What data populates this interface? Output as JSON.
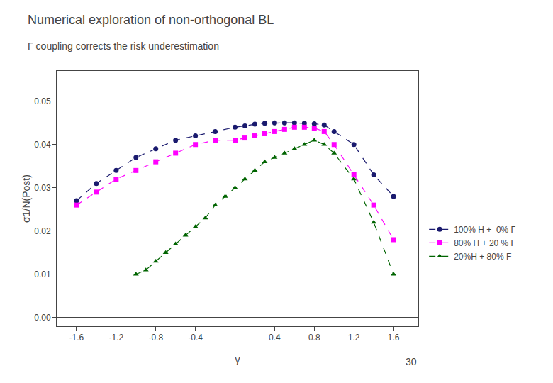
{
  "chart_data": {
    "type": "line",
    "title": "Numerical exploration of non-orthogonal BL",
    "subtitle": "Γ coupling corrects the risk underestimation",
    "xlabel": "γ",
    "ylabel": "σ1/N(Post)",
    "annotations": [
      "30"
    ],
    "xlim": [
      -1.8,
      1.85
    ],
    "ylim": [
      -0.002,
      0.057
    ],
    "xticks": [
      -1.6,
      -1.2,
      -0.8,
      -0.4,
      {
        "value": 0.0,
        "label": null
      },
      0.4,
      0.8,
      1.2,
      1.6
    ],
    "yticks": [
      {
        "value": 0.0,
        "label": "0.00"
      },
      0.01,
      0.02,
      0.03,
      0.04,
      0.05
    ],
    "grid": false,
    "legend": "right",
    "series": [
      {
        "name": "100% H +  0% Γ",
        "color": "#1a1a6e",
        "marker": "circle",
        "line_style": "dash",
        "x": [
          -1.6,
          -1.4,
          -1.2,
          -1.0,
          -0.8,
          -0.6,
          -0.4,
          -0.2,
          0.0,
          0.1,
          0.2,
          0.3,
          0.4,
          0.5,
          0.6,
          0.7,
          0.8,
          0.9,
          1.0,
          1.2,
          1.4,
          1.6
        ],
        "values": [
          0.027,
          0.031,
          0.034,
          0.037,
          0.039,
          0.041,
          0.042,
          0.043,
          0.044,
          0.0443,
          0.0447,
          0.0449,
          0.045,
          0.045,
          0.045,
          0.0449,
          0.0448,
          0.0445,
          0.043,
          0.04,
          0.033,
          0.028
        ]
      },
      {
        "name": "80% H + 20 % F",
        "color": "#ff00ff",
        "marker": "square",
        "line_style": "dash",
        "x": [
          -1.6,
          -1.4,
          -1.2,
          -1.0,
          -0.8,
          -0.6,
          -0.4,
          -0.2,
          0.0,
          0.1,
          0.2,
          0.3,
          0.4,
          0.5,
          0.6,
          0.7,
          0.8,
          0.9,
          1.0,
          1.2,
          1.4,
          1.6
        ],
        "values": [
          0.026,
          0.029,
          0.032,
          0.034,
          0.036,
          0.038,
          0.04,
          0.041,
          0.041,
          0.0415,
          0.042,
          0.0425,
          0.043,
          0.0435,
          0.044,
          0.044,
          0.0438,
          0.043,
          0.04,
          0.033,
          0.026,
          0.018
        ]
      },
      {
        "name": "20%H + 80% F",
        "color": "#006400",
        "marker": "triangle-up",
        "line_style": "dash",
        "x": [
          -1.0,
          -0.9,
          -0.8,
          -0.7,
          -0.6,
          -0.5,
          -0.4,
          -0.3,
          -0.2,
          -0.1,
          0.0,
          0.1,
          0.2,
          0.3,
          0.4,
          0.5,
          0.6,
          0.7,
          0.8,
          0.9,
          1.0,
          1.2,
          1.4,
          1.6
        ],
        "values": [
          0.01,
          0.011,
          0.013,
          0.015,
          0.017,
          0.019,
          0.021,
          0.023,
          0.026,
          0.028,
          0.03,
          0.032,
          0.034,
          0.036,
          0.037,
          0.038,
          0.039,
          0.04,
          0.041,
          0.04,
          0.038,
          0.032,
          0.022,
          0.01
        ]
      }
    ]
  }
}
